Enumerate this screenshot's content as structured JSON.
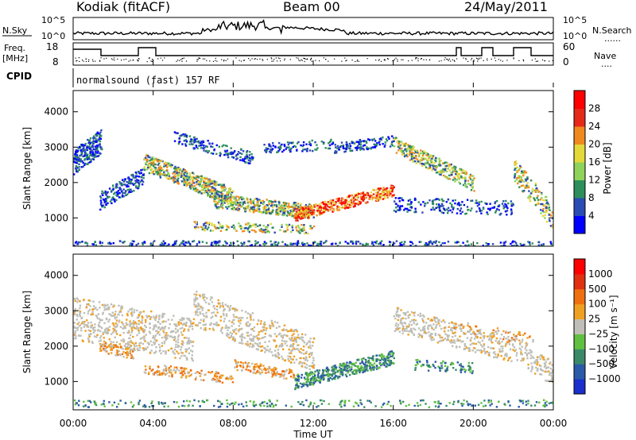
{
  "header": {
    "station": "Kodiak (fitACF)",
    "beam": "Beam 00",
    "date": "24/May/2011"
  },
  "noise_panel": {
    "left_label": "N.Sky",
    "right_label": "N.Search",
    "right_label_marker": "......",
    "ticks_left": [
      "10^5",
      "10^0"
    ],
    "ticks_right": [
      "10^5",
      "10^0"
    ]
  },
  "freq_panel": {
    "left_label_line1": "Freq.",
    "left_label_line2": "[MHz]",
    "ticks_left": [
      "18",
      "8"
    ],
    "ticks_right": [
      "60",
      "0"
    ],
    "right_label": "Nave",
    "right_label_marker": "....",
    "cpid_label": "CPID"
  },
  "cpid_text": "normalsound (fast) 157 RF",
  "chart_data": [
    {
      "type": "heatmap",
      "name": "power",
      "ylabel": "Slant Range [km]",
      "yticks": [
        "4000",
        "3000",
        "2000",
        "1000"
      ],
      "ylim": [
        200,
        4600
      ],
      "colorbar": {
        "label": "Power [dB]",
        "ticks": [
          "28",
          "24",
          "20",
          "16",
          "12",
          "8",
          "4"
        ],
        "colors": [
          "#0000ff",
          "#2b4bb5",
          "#2e8f5c",
          "#8fd35a",
          "#e4d93a",
          "#f08a1f",
          "#e52a1a",
          "#ff0000"
        ]
      }
    },
    {
      "type": "heatmap",
      "name": "velocity",
      "ylabel": "Slant Range [km]",
      "yticks": [
        "4000",
        "3000",
        "2000",
        "1000"
      ],
      "ylim": [
        200,
        4600
      ],
      "colorbar": {
        "label": "Velocity [m s⁻¹]",
        "ticks": [
          "1000",
          "500",
          "100",
          "25",
          "−25",
          "−100",
          "−500",
          "−1000"
        ],
        "colors": [
          "#1a2fcc",
          "#2b5aa8",
          "#3a8a6a",
          "#60c040",
          "#bfbfb8",
          "#f0a020",
          "#f07010",
          "#e03010",
          "#ff0000"
        ]
      }
    }
  ],
  "x_axis": {
    "label": "Time UT",
    "ticks": [
      "00:00",
      "04:00",
      "08:00",
      "12:00",
      "16:00",
      "20:00",
      "00:00"
    ]
  },
  "colors": {
    "axis": "#000000",
    "noise_line": "#000000"
  }
}
